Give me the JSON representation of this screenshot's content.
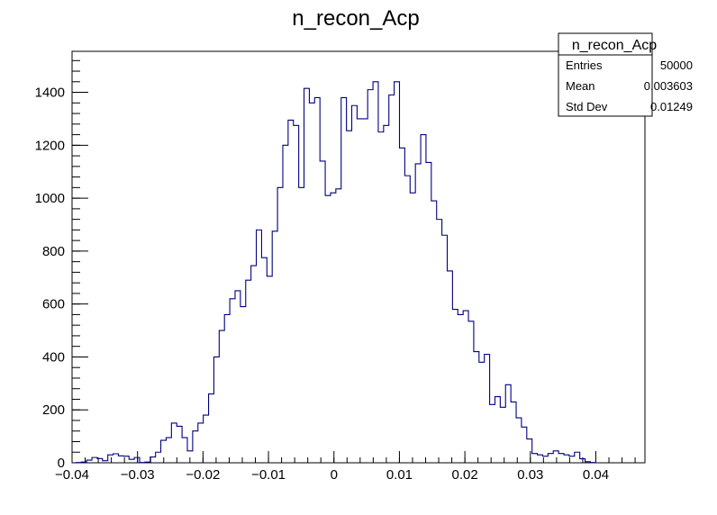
{
  "chart_data": {
    "type": "histogram",
    "title": "n_recon_Acp",
    "xlabel": "",
    "ylabel": "",
    "xlim": [
      -0.04,
      0.0475
    ],
    "ylim": [
      0,
      1555
    ],
    "bin_start": -0.0394,
    "bin_width": 0.00081,
    "line_color": "#000080",
    "grid": false,
    "x_ticks": [
      {
        "value": -0.04,
        "label": "−0.04"
      },
      {
        "value": -0.03,
        "label": "−0.03"
      },
      {
        "value": -0.02,
        "label": "−0.02"
      },
      {
        "value": -0.01,
        "label": "−0.01"
      },
      {
        "value": 0,
        "label": "0"
      },
      {
        "value": 0.01,
        "label": "0.01"
      },
      {
        "value": 0.02,
        "label": "0.02"
      },
      {
        "value": 0.03,
        "label": "0.03"
      },
      {
        "value": 0.04,
        "label": "0.04"
      }
    ],
    "y_ticks": [
      {
        "value": 0,
        "label": "0"
      },
      {
        "value": 200,
        "label": "200"
      },
      {
        "value": 400,
        "label": "400"
      },
      {
        "value": 600,
        "label": "600"
      },
      {
        "value": 800,
        "label": "800"
      },
      {
        "value": 1000,
        "label": "1000"
      },
      {
        "value": 1200,
        "label": "1200"
      },
      {
        "value": 1400,
        "label": "1400"
      }
    ],
    "values": [
      1,
      3,
      10,
      20,
      16,
      8,
      30,
      34,
      26,
      25,
      13,
      20,
      1,
      3,
      22,
      40,
      85,
      95,
      150,
      138,
      95,
      45,
      120,
      150,
      180,
      260,
      400,
      500,
      560,
      620,
      650,
      590,
      690,
      745,
      880,
      775,
      705,
      875,
      1040,
      1200,
      1295,
      1275,
      1040,
      1415,
      1360,
      1380,
      1140,
      1010,
      1020,
      1035,
      1380,
      1255,
      1350,
      1300,
      1300,
      1410,
      1440,
      1250,
      1275,
      1390,
      1440,
      1190,
      1085,
      1020,
      1130,
      1240,
      1135,
      990,
      920,
      860,
      725,
      580,
      560,
      575,
      535,
      420,
      380,
      410,
      220,
      250,
      210,
      295,
      230,
      170,
      135,
      90,
      35,
      30,
      25,
      35,
      45,
      35,
      30,
      25,
      40,
      15,
      4,
      1
    ],
    "stats_box": {
      "title": "n_recon_Acp",
      "rows": [
        {
          "label": "Entries",
          "value": "50000"
        },
        {
          "label": "Mean",
          "value": "0.003603"
        },
        {
          "label": "Std Dev",
          "value": "0.01249"
        }
      ]
    }
  }
}
